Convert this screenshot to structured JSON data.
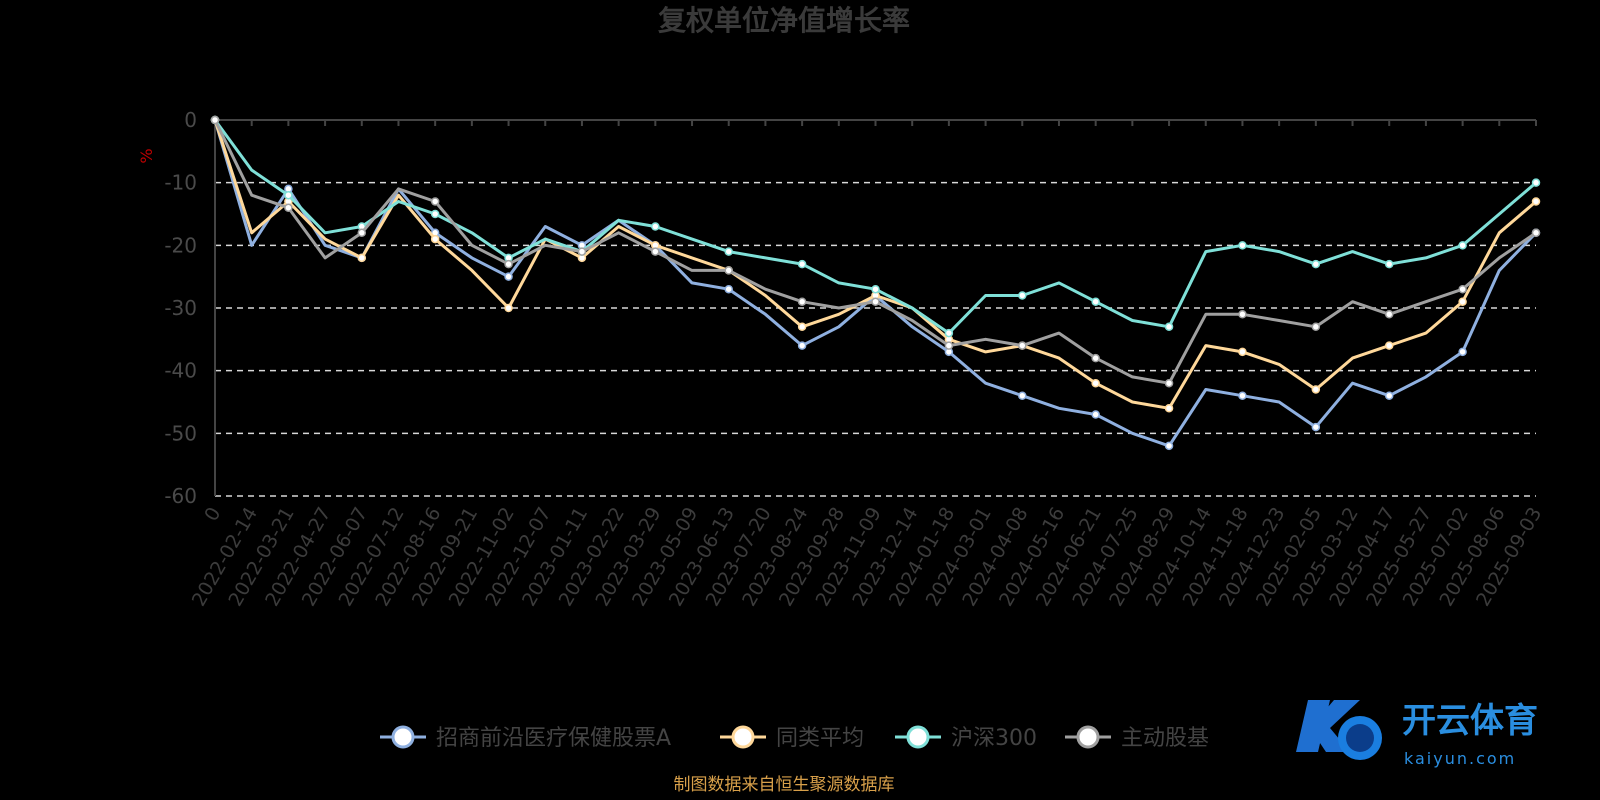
{
  "chart_data": {
    "type": "line",
    "title": "复权单位净值增长率",
    "ylabel": "%",
    "ylim": [
      -60,
      0
    ],
    "yticks": [
      "0",
      "-10",
      "-20",
      "-30",
      "-40",
      "-50",
      "-60"
    ],
    "grid": true,
    "legend": "bottom",
    "x": [
      "0",
      "2022-02-14",
      "2022-03-21",
      "2022-04-27",
      "2022-06-07",
      "2022-07-12",
      "2022-08-16",
      "2022-09-21",
      "2022-11-02",
      "2022-12-07",
      "2023-01-11",
      "2023-02-22",
      "2023-03-29",
      "2023-05-09",
      "2023-06-13",
      "2023-07-20",
      "2023-08-24",
      "2023-09-28",
      "2023-11-09",
      "2023-12-14",
      "2024-01-18",
      "2024-03-01",
      "2024-04-08",
      "2024-05-16",
      "2024-06-21",
      "2024-07-25",
      "2024-08-29",
      "2024-10-14",
      "2024-11-18",
      "2024-12-23",
      "2025-02-05",
      "2025-03-12",
      "2025-04-17",
      "2025-05-27",
      "2025-07-02",
      "2025-08-06",
      "2025-09-03"
    ],
    "series": [
      {
        "name": "招商前沿医疗保健股票A",
        "color": "#8fb0e0",
        "values": [
          0,
          -20,
          -11,
          -20,
          -22,
          -11,
          -18,
          -22,
          -25,
          -17,
          -20,
          -16,
          -20,
          -26,
          -27,
          -31,
          -36,
          -33,
          -28,
          -33,
          -37,
          -42,
          -44,
          -46,
          -47,
          -50,
          -52,
          -43,
          -44,
          -45,
          -49,
          -42,
          -44,
          -41,
          -37,
          -24,
          -18
        ]
      },
      {
        "name": "同类平均",
        "color": "#ffd89a",
        "values": [
          0,
          -18,
          -13,
          -19,
          -22,
          -12,
          -19,
          -24,
          -30,
          -19,
          -22,
          -17,
          -20,
          -22,
          -24,
          -28,
          -33,
          -31,
          -28,
          -30,
          -35,
          -37,
          -36,
          -38,
          -42,
          -45,
          -46,
          -36,
          -37,
          -39,
          -43,
          -38,
          -36,
          -34,
          -29,
          -18,
          -13
        ]
      },
      {
        "name": "沪深300",
        "color": "#7fe0d8",
        "values": [
          0,
          -8,
          -12,
          -18,
          -17,
          -13,
          -15,
          -18,
          -22,
          -19,
          -21,
          -16,
          -17,
          -19,
          -21,
          -22,
          -23,
          -26,
          -27,
          -30,
          -34,
          -28,
          -28,
          -26,
          -29,
          -32,
          -33,
          -21,
          -20,
          -21,
          -23,
          -21,
          -23,
          -22,
          -20,
          -15,
          -10
        ]
      },
      {
        "name": "主动股基",
        "color": "#a0a0a0",
        "values": [
          0,
          -12,
          -14,
          -22,
          -18,
          -11,
          -13,
          -20,
          -23,
          -20,
          -21,
          -18,
          -21,
          -24,
          -24,
          -27,
          -29,
          -30,
          -29,
          -32,
          -36,
          -35,
          -36,
          -34,
          -38,
          -41,
          -42,
          -31,
          -31,
          -32,
          -33,
          -29,
          -31,
          -29,
          -27,
          -22,
          -18
        ]
      }
    ]
  },
  "source_note": "制图数据来自恒生聚源数据库",
  "logo": {
    "main": "开云体育",
    "sub": "kaiyun.com"
  }
}
